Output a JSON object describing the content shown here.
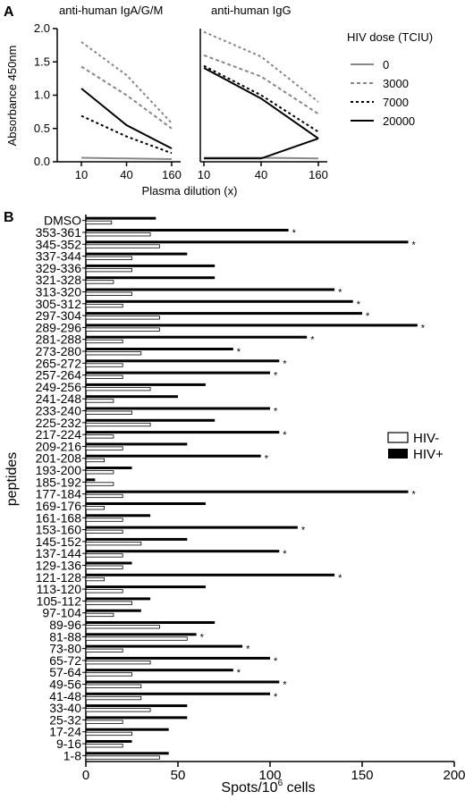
{
  "chart_data": [
    {
      "type": "line",
      "panel_label": "A",
      "title": "anti-human IgA/G/M",
      "ylabel": "Absorbance 450nm",
      "xlabel": "Plasma dilution (x)",
      "x": [
        10,
        40,
        160
      ],
      "x_tick_labels": [
        "10",
        "40",
        "160"
      ],
      "ylim": [
        0,
        2.0
      ],
      "y_ticks": [
        0,
        0.5,
        1.0,
        1.5,
        2.0
      ],
      "y_tick_labels": [
        "0.0",
        "0.5",
        "1.0",
        "1.5",
        "2.0"
      ],
      "series": [
        {
          "name": "0",
          "values": [
            0.06,
            0.05,
            0.04
          ]
        },
        {
          "name": "3000",
          "values": [
            1.43,
            1.0,
            0.5
          ]
        },
        {
          "name": "7000",
          "values": [
            0.69,
            0.38,
            0.13
          ]
        },
        {
          "name": "20000",
          "values": [
            1.1,
            0.55,
            0.2
          ]
        },
        {
          "name": "",
          "values": [
            1.8,
            1.3,
            0.58
          ]
        }
      ]
    },
    {
      "type": "line",
      "title": "anti-human IgG",
      "x": [
        10,
        40,
        160
      ],
      "x_tick_labels": [
        "10",
        "40",
        "160"
      ],
      "ylim": [
        0,
        2.0
      ],
      "legend": {
        "title": "HIV dose (TCIU)",
        "placement": "right",
        "entries": [
          "0",
          "3000",
          "7000",
          "20000"
        ]
      },
      "series": [
        {
          "name": "0",
          "values": [
            0.06,
            0.06,
            0.05
          ]
        },
        {
          "name": "3000",
          "values": [
            1.6,
            1.28,
            0.72
          ]
        },
        {
          "name": "7000",
          "values": [
            1.44,
            1.0,
            0.45
          ]
        },
        {
          "name": "20000",
          "values": [
            1.41,
            0.95,
            0.35
          ]
        },
        {
          "name": "",
          "values": [
            1.95,
            1.58,
            0.9
          ]
        },
        {
          "name": "",
          "values": [
            0.05,
            0.05,
            0.35
          ]
        }
      ]
    },
    {
      "type": "bar",
      "orientation": "horizontal",
      "panel_label": "B",
      "ylabel": "peptides",
      "xlabel_main": "Spots/10",
      "xlabel_sup": "6",
      "xlabel_end": " cells",
      "xlim": [
        0,
        200
      ],
      "x_ticks": [
        0,
        50,
        100,
        150,
        200
      ],
      "x_tick_labels": [
        "0",
        "50",
        "100",
        "150",
        "200"
      ],
      "legend": {
        "placement": "right",
        "entries": [
          "HIV-",
          "HIV+"
        ]
      },
      "categories": [
        "DMSO",
        "353-361",
        "345-352",
        "337-344",
        "329-336",
        "321-328",
        "313-320",
        "305-312",
        "297-304",
        "289-296",
        "281-288",
        "273-280",
        "265-272",
        "257-264",
        "249-256",
        "241-248",
        "233-240",
        "225-232",
        "217-224",
        "209-216",
        "201-208",
        "193-200",
        "185-192",
        "177-184",
        "169-176",
        "161-168",
        "153-160",
        "145-152",
        "137-144",
        "129-136",
        "121-128",
        "113-120",
        "105-112",
        "97-104",
        "89-96",
        "81-88",
        "73-80",
        "65-72",
        "57-64",
        "49-56",
        "41-48",
        "33-40",
        "25-32",
        "17-24",
        "9-16",
        "1-8"
      ],
      "series": [
        {
          "name": "HIV+",
          "values": [
            38,
            110,
            175,
            55,
            70,
            70,
            135,
            145,
            150,
            180,
            120,
            80,
            105,
            100,
            65,
            50,
            100,
            70,
            105,
            55,
            95,
            25,
            5,
            175,
            65,
            35,
            115,
            55,
            105,
            25,
            135,
            65,
            35,
            30,
            70,
            60,
            85,
            100,
            80,
            105,
            100,
            55,
            55,
            45,
            25,
            45
          ]
        },
        {
          "name": "HIV-",
          "values": [
            14,
            35,
            40,
            25,
            25,
            15,
            25,
            20,
            40,
            40,
            20,
            30,
            20,
            20,
            35,
            15,
            25,
            35,
            15,
            20,
            10,
            15,
            15,
            20,
            10,
            20,
            20,
            30,
            20,
            20,
            10,
            20,
            25,
            15,
            40,
            55,
            20,
            35,
            25,
            30,
            30,
            35,
            20,
            25,
            20,
            40
          ]
        }
      ],
      "significance_label": "*",
      "significant": [
        "353-361",
        "345-352",
        "313-320",
        "305-312",
        "297-304",
        "289-296",
        "281-288",
        "273-280",
        "265-272",
        "257-264",
        "233-240",
        "217-224",
        "201-208",
        "177-184",
        "153-160",
        "137-144",
        "121-128",
        "81-88",
        "73-80",
        "65-72",
        "57-64",
        "49-56",
        "41-48"
      ]
    }
  ]
}
